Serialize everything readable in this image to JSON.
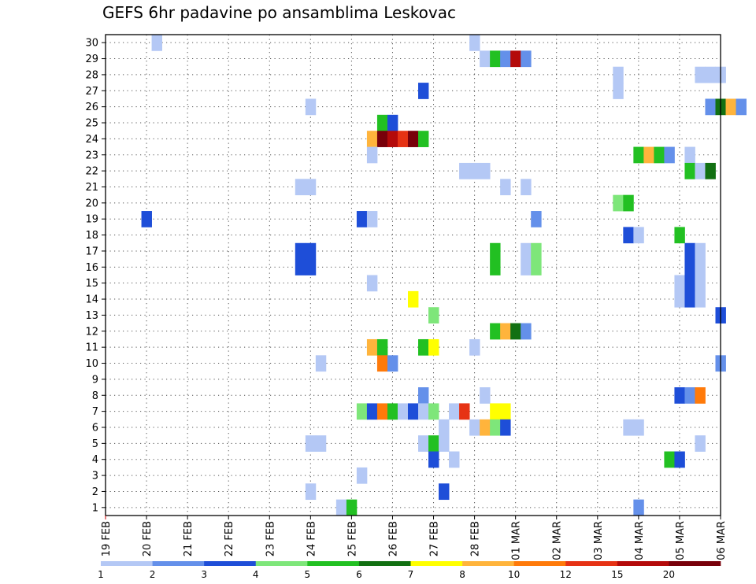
{
  "chart_data": {
    "type": "heatmap",
    "title": "GEFS 6hr padavine po ansamblima Leskovac",
    "xlabel": "",
    "ylabel": "",
    "grid": true,
    "x_tick_labels": [
      "19 FEB",
      "20 FEB",
      "21 FEB",
      "22 FEB",
      "23 FEB",
      "24 FEB",
      "25 FEB",
      "26 FEB",
      "27 FEB",
      "28 FEB",
      "01 MAR",
      "02 MAR",
      "03 MAR",
      "04 MAR",
      "05 MAR",
      "06 MAR"
    ],
    "y_tick_labels": [
      "1",
      "2",
      "3",
      "4",
      "5",
      "6",
      "7",
      "8",
      "9",
      "10",
      "11",
      "12",
      "13",
      "14",
      "15",
      "16",
      "17",
      "18",
      "19",
      "20",
      "21",
      "22",
      "23",
      "24",
      "25",
      "26",
      "27",
      "28",
      "29",
      "30"
    ],
    "xlim_days": [
      0,
      15
    ],
    "ylim": [
      0.5,
      30.5
    ],
    "legend": {
      "placement": "bottom",
      "labels": [
        "1",
        "2",
        "3",
        "4",
        "5",
        "6",
        "7",
        "8",
        "10",
        "12",
        "15",
        "20"
      ],
      "colors": [
        "#b4c8f5",
        "#6490ea",
        "#1e4ed8",
        "#7ee67a",
        "#22c022",
        "#127012",
        "#ffff00",
        "#ffb43c",
        "#ff7a0a",
        "#e63214",
        "#b40a0a",
        "#78000a"
      ]
    },
    "cells": [
      {
        "m": 30,
        "d": 1.25,
        "c": 0
      },
      {
        "m": 30,
        "d": 9.0,
        "c": 0
      },
      {
        "m": 29,
        "d": 9.25,
        "c": 0
      },
      {
        "m": 29,
        "d": 9.5,
        "c": 4
      },
      {
        "m": 29,
        "d": 9.75,
        "c": 1
      },
      {
        "m": 29,
        "d": 10.0,
        "c": 10
      },
      {
        "m": 29,
        "d": 10.25,
        "c": 1
      },
      {
        "m": 28,
        "d": 12.5,
        "c": 0
      },
      {
        "m": 28,
        "d": 14.5,
        "c": 0
      },
      {
        "m": 28,
        "d": 14.75,
        "c": 0
      },
      {
        "m": 28,
        "d": 15.0,
        "c": 0
      },
      {
        "m": 27,
        "d": 7.75,
        "c": 2
      },
      {
        "m": 27,
        "d": 12.5,
        "c": 0
      },
      {
        "m": 26,
        "d": 5.0,
        "c": 0
      },
      {
        "m": 26,
        "d": 14.75,
        "c": 1
      },
      {
        "m": 26,
        "d": 15.0,
        "c": 5
      },
      {
        "m": 26,
        "d": 15.25,
        "c": 7
      },
      {
        "m": 26,
        "d": 15.5,
        "c": 1
      },
      {
        "m": 25,
        "d": 6.75,
        "c": 4
      },
      {
        "m": 25,
        "d": 7.0,
        "c": 2
      },
      {
        "m": 24,
        "d": 6.5,
        "c": 7
      },
      {
        "m": 24,
        "d": 6.75,
        "c": 11
      },
      {
        "m": 24,
        "d": 7.0,
        "c": 10
      },
      {
        "m": 24,
        "d": 7.25,
        "c": 9
      },
      {
        "m": 24,
        "d": 7.5,
        "c": 11
      },
      {
        "m": 24,
        "d": 7.75,
        "c": 4
      },
      {
        "m": 23,
        "d": 6.5,
        "c": 0
      },
      {
        "m": 23,
        "d": 13.0,
        "c": 4
      },
      {
        "m": 23,
        "d": 13.25,
        "c": 7
      },
      {
        "m": 23,
        "d": 13.5,
        "c": 4
      },
      {
        "m": 23,
        "d": 13.75,
        "c": 1
      },
      {
        "m": 23,
        "d": 14.25,
        "c": 0
      },
      {
        "m": 22,
        "d": 8.75,
        "c": 0
      },
      {
        "m": 22,
        "d": 9.0,
        "c": 0
      },
      {
        "m": 22,
        "d": 9.25,
        "c": 0
      },
      {
        "m": 22,
        "d": 14.25,
        "c": 4
      },
      {
        "m": 22,
        "d": 14.5,
        "c": 0
      },
      {
        "m": 22,
        "d": 14.75,
        "c": 5
      },
      {
        "m": 21,
        "d": 4.75,
        "c": 0
      },
      {
        "m": 21,
        "d": 5.0,
        "c": 0
      },
      {
        "m": 21,
        "d": 9.75,
        "c": 0
      },
      {
        "m": 21,
        "d": 10.25,
        "c": 0
      },
      {
        "m": 20,
        "d": 12.5,
        "c": 3
      },
      {
        "m": 20,
        "d": 12.75,
        "c": 4
      },
      {
        "m": 19,
        "d": 1.0,
        "c": 2
      },
      {
        "m": 19,
        "d": 6.25,
        "c": 2
      },
      {
        "m": 19,
        "d": 6.5,
        "c": 0
      },
      {
        "m": 19,
        "d": 10.5,
        "c": 1
      },
      {
        "m": 18,
        "d": 12.75,
        "c": 2
      },
      {
        "m": 18,
        "d": 13.0,
        "c": 0
      },
      {
        "m": 18,
        "d": 14.0,
        "c": 4
      },
      {
        "m": 17,
        "d": 4.75,
        "c": 2
      },
      {
        "m": 17,
        "d": 5.0,
        "c": 2
      },
      {
        "m": 17,
        "d": 9.5,
        "c": 4
      },
      {
        "m": 17,
        "d": 10.25,
        "c": 0
      },
      {
        "m": 17,
        "d": 10.5,
        "c": 3
      },
      {
        "m": 17,
        "d": 14.25,
        "c": 2
      },
      {
        "m": 17,
        "d": 14.5,
        "c": 0
      },
      {
        "m": 16,
        "d": 4.75,
        "c": 2
      },
      {
        "m": 16,
        "d": 5.0,
        "c": 2
      },
      {
        "m": 16,
        "d": 9.5,
        "c": 4
      },
      {
        "m": 16,
        "d": 10.25,
        "c": 0
      },
      {
        "m": 16,
        "d": 10.5,
        "c": 3
      },
      {
        "m": 16,
        "d": 14.25,
        "c": 2
      },
      {
        "m": 16,
        "d": 14.5,
        "c": 0
      },
      {
        "m": 15,
        "d": 6.5,
        "c": 0
      },
      {
        "m": 15,
        "d": 14.0,
        "c": 0
      },
      {
        "m": 15,
        "d": 14.25,
        "c": 2
      },
      {
        "m": 15,
        "d": 14.5,
        "c": 0
      },
      {
        "m": 14,
        "d": 7.5,
        "c": 6
      },
      {
        "m": 14,
        "d": 14.0,
        "c": 0
      },
      {
        "m": 14,
        "d": 14.25,
        "c": 2
      },
      {
        "m": 14,
        "d": 14.5,
        "c": 0
      },
      {
        "m": 13,
        "d": 8.0,
        "c": 3
      },
      {
        "m": 13,
        "d": 15.0,
        "c": 2
      },
      {
        "m": 12,
        "d": 9.5,
        "c": 4
      },
      {
        "m": 12,
        "d": 9.75,
        "c": 7
      },
      {
        "m": 12,
        "d": 10.0,
        "c": 5
      },
      {
        "m": 12,
        "d": 10.25,
        "c": 1
      },
      {
        "m": 11,
        "d": 6.5,
        "c": 7
      },
      {
        "m": 11,
        "d": 6.75,
        "c": 4
      },
      {
        "m": 11,
        "d": 7.75,
        "c": 4
      },
      {
        "m": 11,
        "d": 8.0,
        "c": 6
      },
      {
        "m": 11,
        "d": 9.0,
        "c": 0
      },
      {
        "m": 10,
        "d": 5.25,
        "c": 0
      },
      {
        "m": 10,
        "d": 6.75,
        "c": 8
      },
      {
        "m": 10,
        "d": 7.0,
        "c": 1
      },
      {
        "m": 10,
        "d": 15.0,
        "c": 1
      },
      {
        "m": 8,
        "d": 7.75,
        "c": 1
      },
      {
        "m": 8,
        "d": 9.25,
        "c": 0
      },
      {
        "m": 8,
        "d": 14.0,
        "c": 2
      },
      {
        "m": 8,
        "d": 14.25,
        "c": 1
      },
      {
        "m": 8,
        "d": 14.5,
        "c": 8
      },
      {
        "m": 7,
        "d": 6.25,
        "c": 3
      },
      {
        "m": 7,
        "d": 6.5,
        "c": 2
      },
      {
        "m": 7,
        "d": 6.75,
        "c": 8
      },
      {
        "m": 7,
        "d": 7.0,
        "c": 4
      },
      {
        "m": 7,
        "d": 7.25,
        "c": 0
      },
      {
        "m": 7,
        "d": 7.5,
        "c": 2
      },
      {
        "m": 7,
        "d": 7.75,
        "c": 0
      },
      {
        "m": 7,
        "d": 8.0,
        "c": 3
      },
      {
        "m": 7,
        "d": 8.5,
        "c": 0
      },
      {
        "m": 7,
        "d": 8.75,
        "c": 9
      },
      {
        "m": 7,
        "d": 9.5,
        "c": 6
      },
      {
        "m": 7,
        "d": 9.75,
        "c": 6
      },
      {
        "m": 6,
        "d": 8.25,
        "c": 0
      },
      {
        "m": 6,
        "d": 9.0,
        "c": 0
      },
      {
        "m": 6,
        "d": 9.25,
        "c": 7
      },
      {
        "m": 6,
        "d": 9.5,
        "c": 3
      },
      {
        "m": 6,
        "d": 9.75,
        "c": 2
      },
      {
        "m": 6,
        "d": 12.75,
        "c": 0
      },
      {
        "m": 6,
        "d": 13.0,
        "c": 0
      },
      {
        "m": 5,
        "d": 5.0,
        "c": 0
      },
      {
        "m": 5,
        "d": 5.25,
        "c": 0
      },
      {
        "m": 5,
        "d": 7.75,
        "c": 0
      },
      {
        "m": 5,
        "d": 8.0,
        "c": 4
      },
      {
        "m": 5,
        "d": 8.25,
        "c": 0
      },
      {
        "m": 5,
        "d": 14.5,
        "c": 0
      },
      {
        "m": 4,
        "d": 8.0,
        "c": 2
      },
      {
        "m": 4,
        "d": 8.5,
        "c": 0
      },
      {
        "m": 4,
        "d": 13.75,
        "c": 4
      },
      {
        "m": 4,
        "d": 14.0,
        "c": 2
      },
      {
        "m": 3,
        "d": 6.25,
        "c": 0
      },
      {
        "m": 2,
        "d": 5.0,
        "c": 0
      },
      {
        "m": 2,
        "d": 8.25,
        "c": 2
      },
      {
        "m": 1,
        "d": 5.75,
        "c": 0
      },
      {
        "m": 1,
        "d": 6.0,
        "c": 4
      },
      {
        "m": 1,
        "d": 13.0,
        "c": 1
      }
    ]
  }
}
